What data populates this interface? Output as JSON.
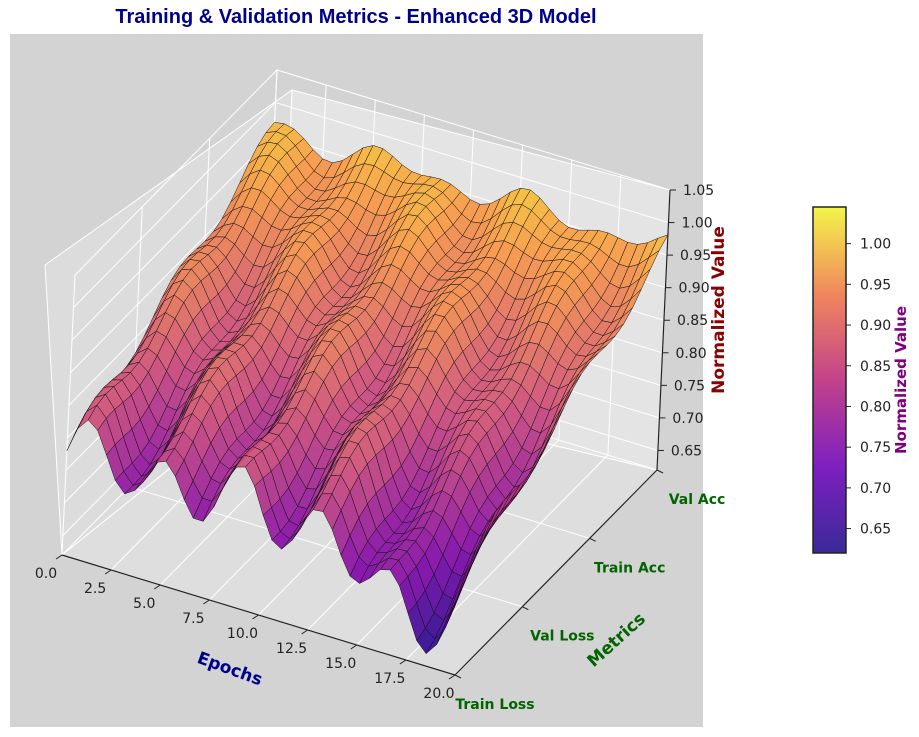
{
  "chart_data": {
    "type": "surface3d",
    "title": "Training & Validation Metrics - Enhanced 3D Model",
    "xlabel": "Epochs",
    "ylabel": "Metrics",
    "zlabel": "Normalized Value",
    "x_ticks": [
      "0.0",
      "2.5",
      "5.0",
      "7.5",
      "10.0",
      "12.5",
      "15.0",
      "17.5",
      "20.0"
    ],
    "y_ticks": [
      "Train Loss",
      "Val Loss",
      "Train Acc",
      "Val Acc"
    ],
    "z_ticks": [
      "0.65",
      "0.70",
      "0.75",
      "0.80",
      "0.85",
      "0.90",
      "0.95",
      "1.00",
      "1.05"
    ],
    "xlim": [
      0,
      20
    ],
    "ylim": [
      0,
      3
    ],
    "zlim": [
      0.62,
      1.05
    ],
    "colormap": "plasma",
    "colorbar": {
      "label": "Normalized Value",
      "ticks": [
        "0.65",
        "0.70",
        "0.75",
        "0.80",
        "0.85",
        "0.90",
        "0.95",
        "1.00"
      ],
      "range": [
        0.62,
        1.045
      ]
    },
    "colors": {
      "title": "#00008b",
      "xlabel": "#00008b",
      "ylabel": "#006400",
      "zlabel": "#8b0000",
      "colorbar_label": "#800080",
      "panel_background": "#d3d3d3"
    }
  }
}
